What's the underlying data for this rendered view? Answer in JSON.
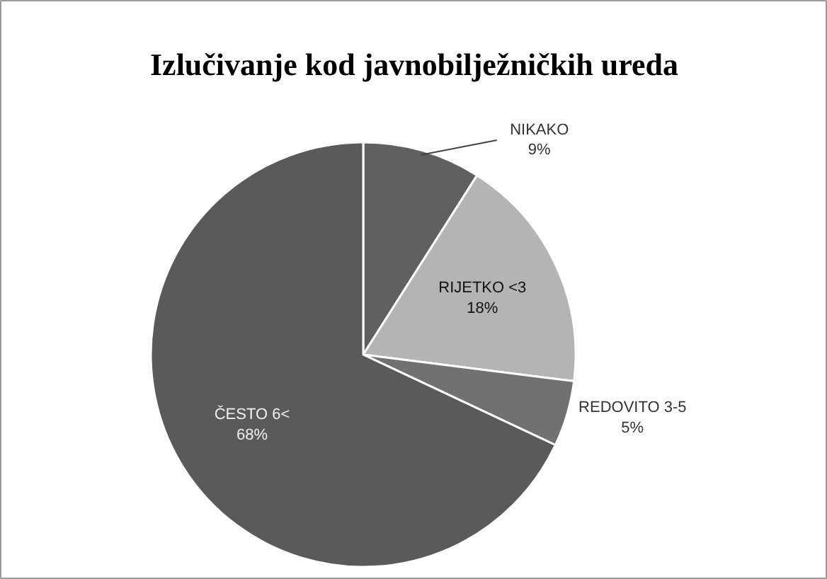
{
  "chart_data": {
    "type": "pie",
    "title": "Izlučivanje kod javnobilježničkih ureda",
    "categories": [
      "NIKAKO",
      "RIJETKO <3",
      "REDOVITO 3-5",
      "ČESTO 6<"
    ],
    "values": [
      9,
      18,
      5,
      68
    ],
    "value_labels": [
      "9%",
      "18%",
      "5%",
      "68%"
    ],
    "colors": [
      "#606060",
      "#b4b4b4",
      "#717171",
      "#5a5a5a"
    ],
    "legend": false
  }
}
